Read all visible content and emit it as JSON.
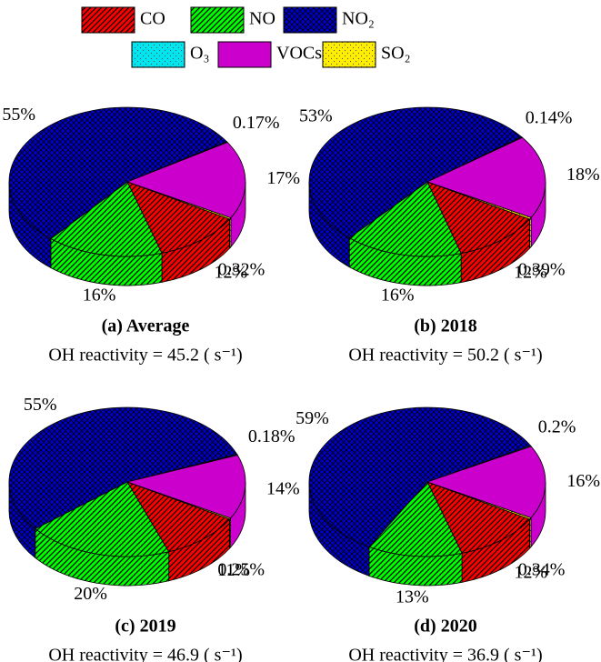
{
  "chart_data": [
    {
      "type": "pie3d",
      "title": "(a) Average",
      "subtitle": "OH reactivity = 45.2  ( s⁻¹)",
      "categories": [
        "CO",
        "NO",
        "NO₂",
        "O₃",
        "VOCs",
        "SO₂"
      ],
      "colors": [
        "#ff0000",
        "#00ff00",
        "#0000cc",
        "#00e5ee",
        "#cc00cc",
        "#ffee00"
      ],
      "values": [
        12,
        16,
        55,
        0.17,
        17,
        0.32
      ],
      "value_labels": [
        "12%",
        "16%",
        "55%",
        "0.17%",
        "17%",
        "0.32%"
      ]
    },
    {
      "type": "pie3d",
      "title": "(b) 2018",
      "subtitle": "OH reactivity = 50.2  ( s⁻¹)",
      "categories": [
        "CO",
        "NO",
        "NO₂",
        "O₃",
        "VOCs",
        "SO₂"
      ],
      "colors": [
        "#ff0000",
        "#00ff00",
        "#0000cc",
        "#00e5ee",
        "#cc00cc",
        "#ffee00"
      ],
      "values": [
        12,
        16,
        53,
        0.14,
        18,
        0.39
      ],
      "value_labels": [
        "12%",
        "16%",
        "53%",
        "0.14%",
        "18%",
        "0.39%"
      ]
    },
    {
      "type": "pie3d",
      "title": "(c) 2019",
      "subtitle": "OH reactivity = 46.9  ( s⁻¹)",
      "categories": [
        "CO",
        "NO",
        "NO₂",
        "O₃",
        "VOCs",
        "SO₂"
      ],
      "colors": [
        "#ff0000",
        "#00ff00",
        "#0000cc",
        "#00e5ee",
        "#cc00cc",
        "#ffee00"
      ],
      "values": [
        11,
        20,
        55,
        0.18,
        14,
        0.25
      ],
      "value_labels": [
        "11%",
        "20%",
        "55%",
        "0.18%",
        "14%",
        "0.25%"
      ]
    },
    {
      "type": "pie3d",
      "title": "(d) 2020",
      "subtitle": "OH reactivity = 36.9  ( s⁻¹)",
      "categories": [
        "CO",
        "NO",
        "NO₂",
        "O₃",
        "VOCs",
        "SO₂"
      ],
      "colors": [
        "#ff0000",
        "#00ff00",
        "#0000cc",
        "#00e5ee",
        "#cc00cc",
        "#ffee00"
      ],
      "values": [
        12,
        13,
        59,
        0.2,
        16,
        0.34
      ],
      "value_labels": [
        "12%",
        "13%",
        "59%",
        "0.2%",
        "16%",
        "0.34%"
      ]
    }
  ]
}
